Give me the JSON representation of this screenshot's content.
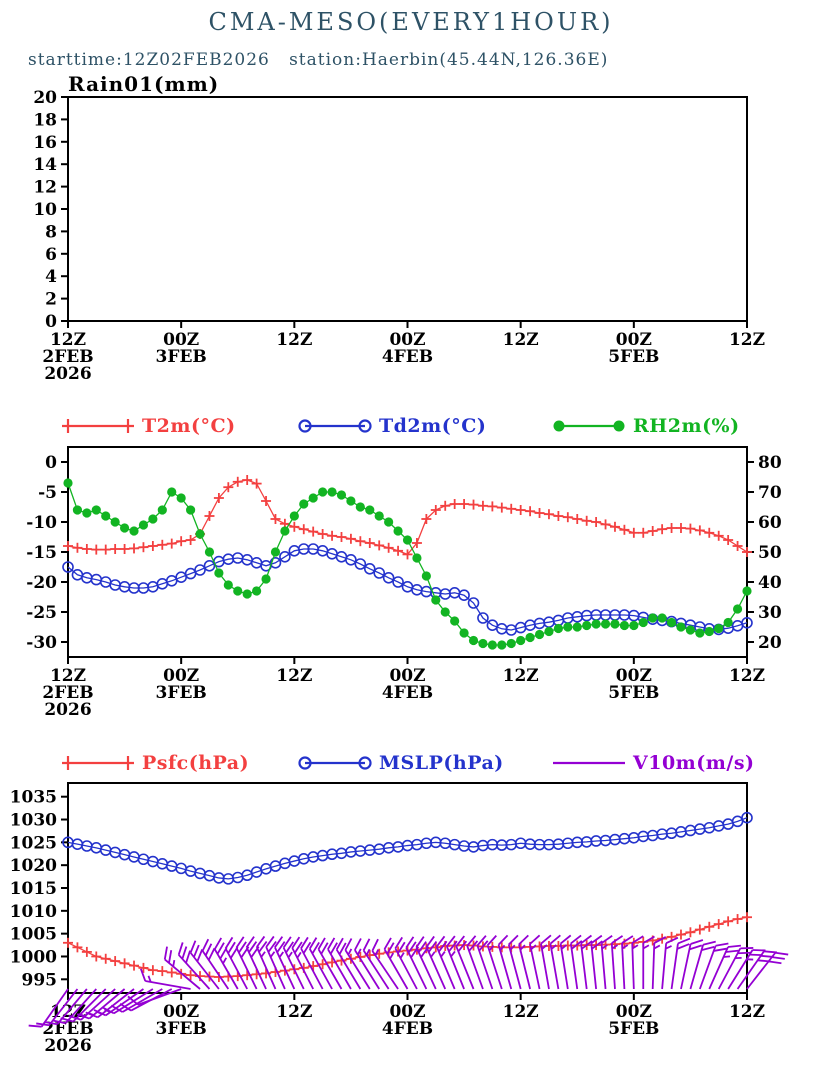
{
  "header": {
    "title": "CMA-MESO(EVERY1HOUR)",
    "subtitle": "starttime:12Z02FEB2026   station:Haerbin(45.44N,126.36E)"
  },
  "colors": {
    "red": "#f34040",
    "blue": "#2433cc",
    "green": "#12b422",
    "purple": "#9400d3",
    "axis": "#000000",
    "header_text": "#2e5266",
    "background": "#ffffff"
  },
  "x_axis": {
    "hours_total": 72,
    "major_ticks": [
      {
        "hour": 0,
        "time": "12Z",
        "date": "2FEB",
        "year": "2026"
      },
      {
        "hour": 12,
        "time": "00Z",
        "date": "3FEB"
      },
      {
        "hour": 24,
        "time": "12Z"
      },
      {
        "hour": 36,
        "time": "00Z",
        "date": "4FEB"
      },
      {
        "hour": 48,
        "time": "12Z"
      },
      {
        "hour": 60,
        "time": "00Z",
        "date": "5FEB"
      },
      {
        "hour": 72,
        "time": "12Z"
      }
    ]
  },
  "chart_data": [
    {
      "type": "line",
      "title": "Rain01(mm)",
      "ylim": [
        0,
        20
      ],
      "yticks": [
        20,
        18,
        16,
        14,
        12,
        10,
        8,
        6,
        4,
        2,
        0
      ],
      "series": [
        {
          "name": "Rain01",
          "color_key": "axis",
          "marker": "none",
          "values": []
        }
      ]
    },
    {
      "type": "line",
      "legend": [
        {
          "label": "T2m(°C)",
          "color_key": "red",
          "marker": "plus"
        },
        {
          "label": "Td2m(°C)",
          "color_key": "blue",
          "marker": "open-circle"
        },
        {
          "label": "RH2m(%)",
          "color_key": "green",
          "marker": "filled-circle"
        }
      ],
      "ylim_left": [
        -32.5,
        2.5
      ],
      "yticks_left": [
        0,
        -5,
        -10,
        -15,
        -20,
        -25,
        -30
      ],
      "ylim_right": [
        15,
        85
      ],
      "yticks_right": [
        80,
        70,
        60,
        50,
        40,
        30,
        20
      ],
      "series": [
        {
          "name": "T2m",
          "axis": "left",
          "color_key": "red",
          "marker": "plus",
          "values": [
            -14.0,
            -14.3,
            -14.5,
            -14.6,
            -14.6,
            -14.5,
            -14.5,
            -14.4,
            -14.2,
            -14.0,
            -13.8,
            -13.6,
            -13.2,
            -13.0,
            -12.0,
            -9.0,
            -6.0,
            -4.2,
            -3.3,
            -3.0,
            -3.6,
            -6.5,
            -9.5,
            -10.3,
            -10.8,
            -11.2,
            -11.6,
            -12.0,
            -12.3,
            -12.5,
            -12.8,
            -13.2,
            -13.5,
            -13.9,
            -14.3,
            -14.8,
            -15.4,
            -13.5,
            -9.5,
            -8.0,
            -7.3,
            -7.0,
            -7.0,
            -7.1,
            -7.3,
            -7.4,
            -7.6,
            -7.8,
            -8.0,
            -8.2,
            -8.5,
            -8.7,
            -9.0,
            -9.2,
            -9.5,
            -9.8,
            -10.0,
            -10.4,
            -10.8,
            -11.3,
            -11.8,
            -11.8,
            -11.5,
            -11.2,
            -11.0,
            -11.0,
            -11.1,
            -11.4,
            -11.8,
            -12.3,
            -13.0,
            -14.0,
            -15.0
          ]
        },
        {
          "name": "Td2m",
          "axis": "left",
          "color_key": "blue",
          "marker": "open-circle",
          "values": [
            -17.5,
            -18.8,
            -19.3,
            -19.6,
            -20.0,
            -20.5,
            -20.8,
            -21.0,
            -21.0,
            -20.8,
            -20.3,
            -19.8,
            -19.2,
            -18.6,
            -18.0,
            -17.3,
            -16.6,
            -16.2,
            -16.0,
            -16.3,
            -16.8,
            -17.3,
            -16.8,
            -15.8,
            -14.8,
            -14.5,
            -14.5,
            -14.8,
            -15.3,
            -15.8,
            -16.3,
            -17.0,
            -17.8,
            -18.5,
            -19.3,
            -20.0,
            -20.8,
            -21.3,
            -21.6,
            -21.8,
            -22.0,
            -21.8,
            -22.2,
            -23.5,
            -26.0,
            -27.2,
            -27.8,
            -28.0,
            -27.6,
            -27.2,
            -26.9,
            -26.7,
            -26.4,
            -26.0,
            -25.8,
            -25.6,
            -25.5,
            -25.5,
            -25.5,
            -25.5,
            -25.6,
            -25.9,
            -26.2,
            -26.4,
            -26.6,
            -26.9,
            -27.2,
            -27.5,
            -27.8,
            -27.9,
            -27.7,
            -27.3,
            -26.8
          ]
        },
        {
          "name": "RH2m",
          "axis": "right",
          "color_key": "green",
          "marker": "filled-circle",
          "values": [
            73,
            64,
            63,
            64,
            62,
            60,
            58,
            57,
            59,
            61,
            64,
            70,
            68,
            64,
            56,
            50,
            43,
            39,
            37,
            36,
            37,
            41,
            50,
            57,
            62,
            66,
            68,
            70,
            70,
            69,
            67,
            65,
            64,
            62,
            60,
            57,
            54,
            48,
            42,
            34,
            30,
            27,
            23,
            20.5,
            19.5,
            19,
            19,
            19.5,
            20.5,
            21.5,
            22.5,
            23.5,
            24.5,
            25,
            25,
            25.5,
            26,
            26,
            26,
            25.5,
            25.5,
            26.5,
            28,
            28,
            26.5,
            25,
            24,
            23,
            23.5,
            24.5,
            26.5,
            31,
            37
          ]
        }
      ]
    },
    {
      "type": "line+windbarbs",
      "legend": [
        {
          "label": "Psfc(hPa)",
          "color_key": "red",
          "marker": "plus"
        },
        {
          "label": "MSLP(hPa)",
          "color_key": "blue",
          "marker": "open-circle"
        },
        {
          "label": "V10m(m/s)",
          "color_key": "purple",
          "marker": "line"
        }
      ],
      "ylim_left": [
        992,
        1038
      ],
      "yticks_left": [
        1035,
        1030,
        1025,
        1020,
        1015,
        1010,
        1005,
        1000,
        995
      ],
      "series": [
        {
          "name": "Psfc",
          "axis": "left",
          "color_key": "red",
          "marker": "plus",
          "values": [
            1003,
            1002,
            1001,
            1000,
            999.5,
            999,
            998.5,
            998,
            997.5,
            997,
            996.8,
            996.5,
            996.2,
            995.9,
            995.7,
            995.6,
            995.5,
            995.6,
            995.7,
            995.9,
            996.1,
            996.3,
            996.6,
            996.9,
            997.2,
            997.5,
            997.9,
            998.3,
            998.7,
            999.1,
            999.5,
            999.9,
            1000.3,
            1000.6,
            1000.9,
            1001.1,
            1001.3,
            1001.5,
            1001.8,
            1002.0,
            1002.3,
            1002.4,
            1002.5,
            1002.4,
            1002.2,
            1002.1,
            1002.0,
            1002.0,
            1002.0,
            1002.1,
            1002.2,
            1002.3,
            1002.3,
            1002.4,
            1002.4,
            1002.5,
            1002.5,
            1002.6,
            1002.7,
            1002.8,
            1003.0,
            1003.2,
            1003.5,
            1003.9,
            1004.3,
            1004.8,
            1005.3,
            1005.9,
            1006.5,
            1007.1,
            1007.7,
            1008.2,
            1008.6
          ]
        },
        {
          "name": "MSLP",
          "axis": "left",
          "color_key": "blue",
          "marker": "open-circle",
          "values": [
            1025,
            1024.6,
            1024.2,
            1023.8,
            1023.3,
            1022.8,
            1022.3,
            1021.8,
            1021.3,
            1020.8,
            1020.3,
            1019.8,
            1019.3,
            1018.7,
            1018.2,
            1017.7,
            1017.2,
            1017.0,
            1017.3,
            1017.8,
            1018.5,
            1019.2,
            1019.8,
            1020.4,
            1020.9,
            1021.4,
            1021.8,
            1022.1,
            1022.4,
            1022.6,
            1022.9,
            1023.1,
            1023.3,
            1023.5,
            1023.8,
            1024.0,
            1024.3,
            1024.5,
            1024.8,
            1025.0,
            1024.8,
            1024.5,
            1024.2,
            1024.0,
            1024.3,
            1024.5,
            1024.4,
            1024.5,
            1024.8,
            1024.6,
            1024.5,
            1024.5,
            1024.6,
            1024.8,
            1025.0,
            1025.1,
            1025.3,
            1025.4,
            1025.6,
            1025.8,
            1026.0,
            1026.3,
            1026.5,
            1026.8,
            1027.0,
            1027.3,
            1027.6,
            1027.9,
            1028.2,
            1028.6,
            1029.0,
            1029.6,
            1030.4
          ]
        }
      ],
      "wind": {
        "name": "V10m",
        "unit": "m/s",
        "speeds": [
          4,
          4,
          5,
          5,
          5,
          6,
          6,
          6,
          6,
          5,
          5,
          5,
          4,
          6,
          10,
          12,
          12,
          13,
          14,
          13,
          12,
          12,
          11,
          11,
          10,
          10,
          10,
          9,
          9,
          8,
          8,
          8,
          7,
          7,
          7,
          6,
          10,
          11,
          12,
          12,
          11,
          10,
          10,
          9,
          8,
          8,
          7,
          7,
          6,
          6,
          6,
          6,
          7,
          7,
          8,
          8,
          8,
          7,
          7,
          6,
          6,
          6,
          7,
          7,
          8,
          8,
          9,
          9,
          10,
          10,
          11,
          12,
          12
        ],
        "directions_from_deg": [
          215,
          218,
          220,
          222,
          225,
          228,
          230,
          232,
          235,
          238,
          240,
          242,
          250,
          280,
          310,
          318,
          322,
          326,
          330,
          332,
          334,
          335,
          336,
          336,
          335,
          334,
          333,
          332,
          331,
          330,
          330,
          329,
          328,
          328,
          327,
          326,
          330,
          332,
          334,
          335,
          336,
          337,
          338,
          338,
          340,
          341,
          342,
          344,
          345,
          346,
          348,
          350,
          350,
          351,
          352,
          353,
          354,
          355,
          356,
          357,
          358,
          0,
          2,
          5,
          8,
          12,
          16,
          20,
          24,
          28,
          32,
          35,
          38
        ]
      }
    }
  ]
}
